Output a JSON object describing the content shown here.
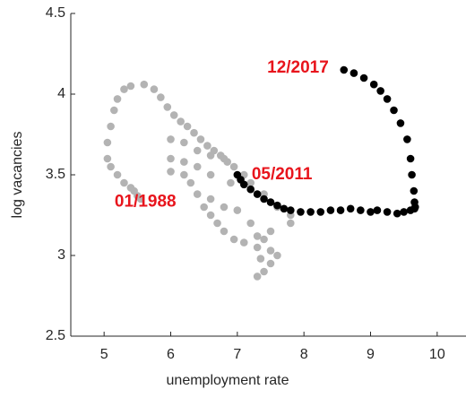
{
  "chart_data": {
    "type": "scatter",
    "x_label": "unemployment rate",
    "y_label": "log vacancies",
    "xlim": [
      4.5,
      10.5
    ],
    "xticks": [
      5,
      6,
      7,
      8,
      9,
      10
    ],
    "ylim": [
      2.5,
      4.5
    ],
    "yticks": [
      2.5,
      3,
      3.5,
      4,
      4.5
    ],
    "series": [
      {
        "color": "#b3b3b3",
        "x": [
          5.05,
          5.05,
          5.1,
          5.15,
          5.2,
          5.3,
          5.4,
          5.6,
          5.75,
          5.85,
          5.95,
          6.05,
          6.15,
          6.25,
          6.35,
          6.45,
          6.55,
          6.65,
          6.75,
          6.85,
          6.95,
          7.1,
          7.2,
          7.4,
          7.6,
          7.8,
          5.1,
          5.2,
          5.3,
          5.4,
          5.45,
          5.5,
          5.55,
          6.0,
          6.2,
          6.4,
          6.6,
          6.9,
          6.0,
          6.2,
          6.3,
          6.4,
          6.5,
          6.6,
          6.7,
          6.8,
          6.95,
          7.1,
          7.3,
          7.5,
          7.6,
          7.5,
          7.4,
          7.3,
          6.6,
          6.8,
          7.0,
          7.2,
          7.5,
          7.8,
          6.0,
          6.2,
          6.4,
          6.6,
          6.8,
          7.3,
          7.4,
          7.35
        ],
        "values": [
          3.6,
          3.7,
          3.8,
          3.9,
          3.97,
          4.03,
          4.05,
          4.06,
          4.03,
          3.98,
          3.92,
          3.87,
          3.83,
          3.8,
          3.76,
          3.72,
          3.68,
          3.65,
          3.62,
          3.58,
          3.55,
          3.5,
          3.45,
          3.38,
          3.3,
          3.25,
          3.55,
          3.5,
          3.45,
          3.42,
          3.4,
          3.37,
          3.35,
          3.6,
          3.58,
          3.55,
          3.5,
          3.45,
          3.52,
          3.5,
          3.45,
          3.38,
          3.3,
          3.25,
          3.2,
          3.15,
          3.1,
          3.08,
          3.05,
          3.03,
          3.0,
          2.95,
          2.9,
          2.87,
          3.35,
          3.3,
          3.28,
          3.2,
          3.15,
          3.2,
          3.72,
          3.7,
          3.65,
          3.62,
          3.6,
          3.12,
          3.1,
          2.98
        ]
      },
      {
        "color": "#000000",
        "x": [
          8.6,
          8.75,
          8.9,
          9.05,
          9.15,
          9.25,
          9.35,
          9.45,
          9.55,
          9.6,
          9.62,
          9.65,
          9.66,
          9.67,
          9.66,
          9.6,
          9.5,
          9.4,
          9.25,
          9.1,
          9.0,
          8.85,
          8.7,
          8.55,
          8.4,
          8.25,
          8.1,
          7.95,
          7.8,
          7.7,
          7.6,
          7.5,
          7.4,
          7.3,
          7.2,
          7.1,
          7.05,
          7.0
        ],
        "values": [
          4.15,
          4.13,
          4.1,
          4.06,
          4.02,
          3.97,
          3.9,
          3.82,
          3.72,
          3.6,
          3.5,
          3.4,
          3.33,
          3.3,
          3.29,
          3.28,
          3.27,
          3.26,
          3.27,
          3.28,
          3.27,
          3.28,
          3.29,
          3.28,
          3.28,
          3.27,
          3.27,
          3.27,
          3.28,
          3.29,
          3.31,
          3.33,
          3.35,
          3.38,
          3.41,
          3.44,
          3.47,
          3.5
        ]
      }
    ],
    "annotations": [
      {
        "text": "12/2017",
        "x": 7.91,
        "y": 4.16,
        "color": "#e8141c"
      },
      {
        "text": "05/2011",
        "x": 7.67,
        "y": 3.5,
        "color": "#e8141c"
      },
      {
        "text": "01/1988",
        "x": 5.62,
        "y": 3.33,
        "color": "#e8141c"
      }
    ]
  }
}
